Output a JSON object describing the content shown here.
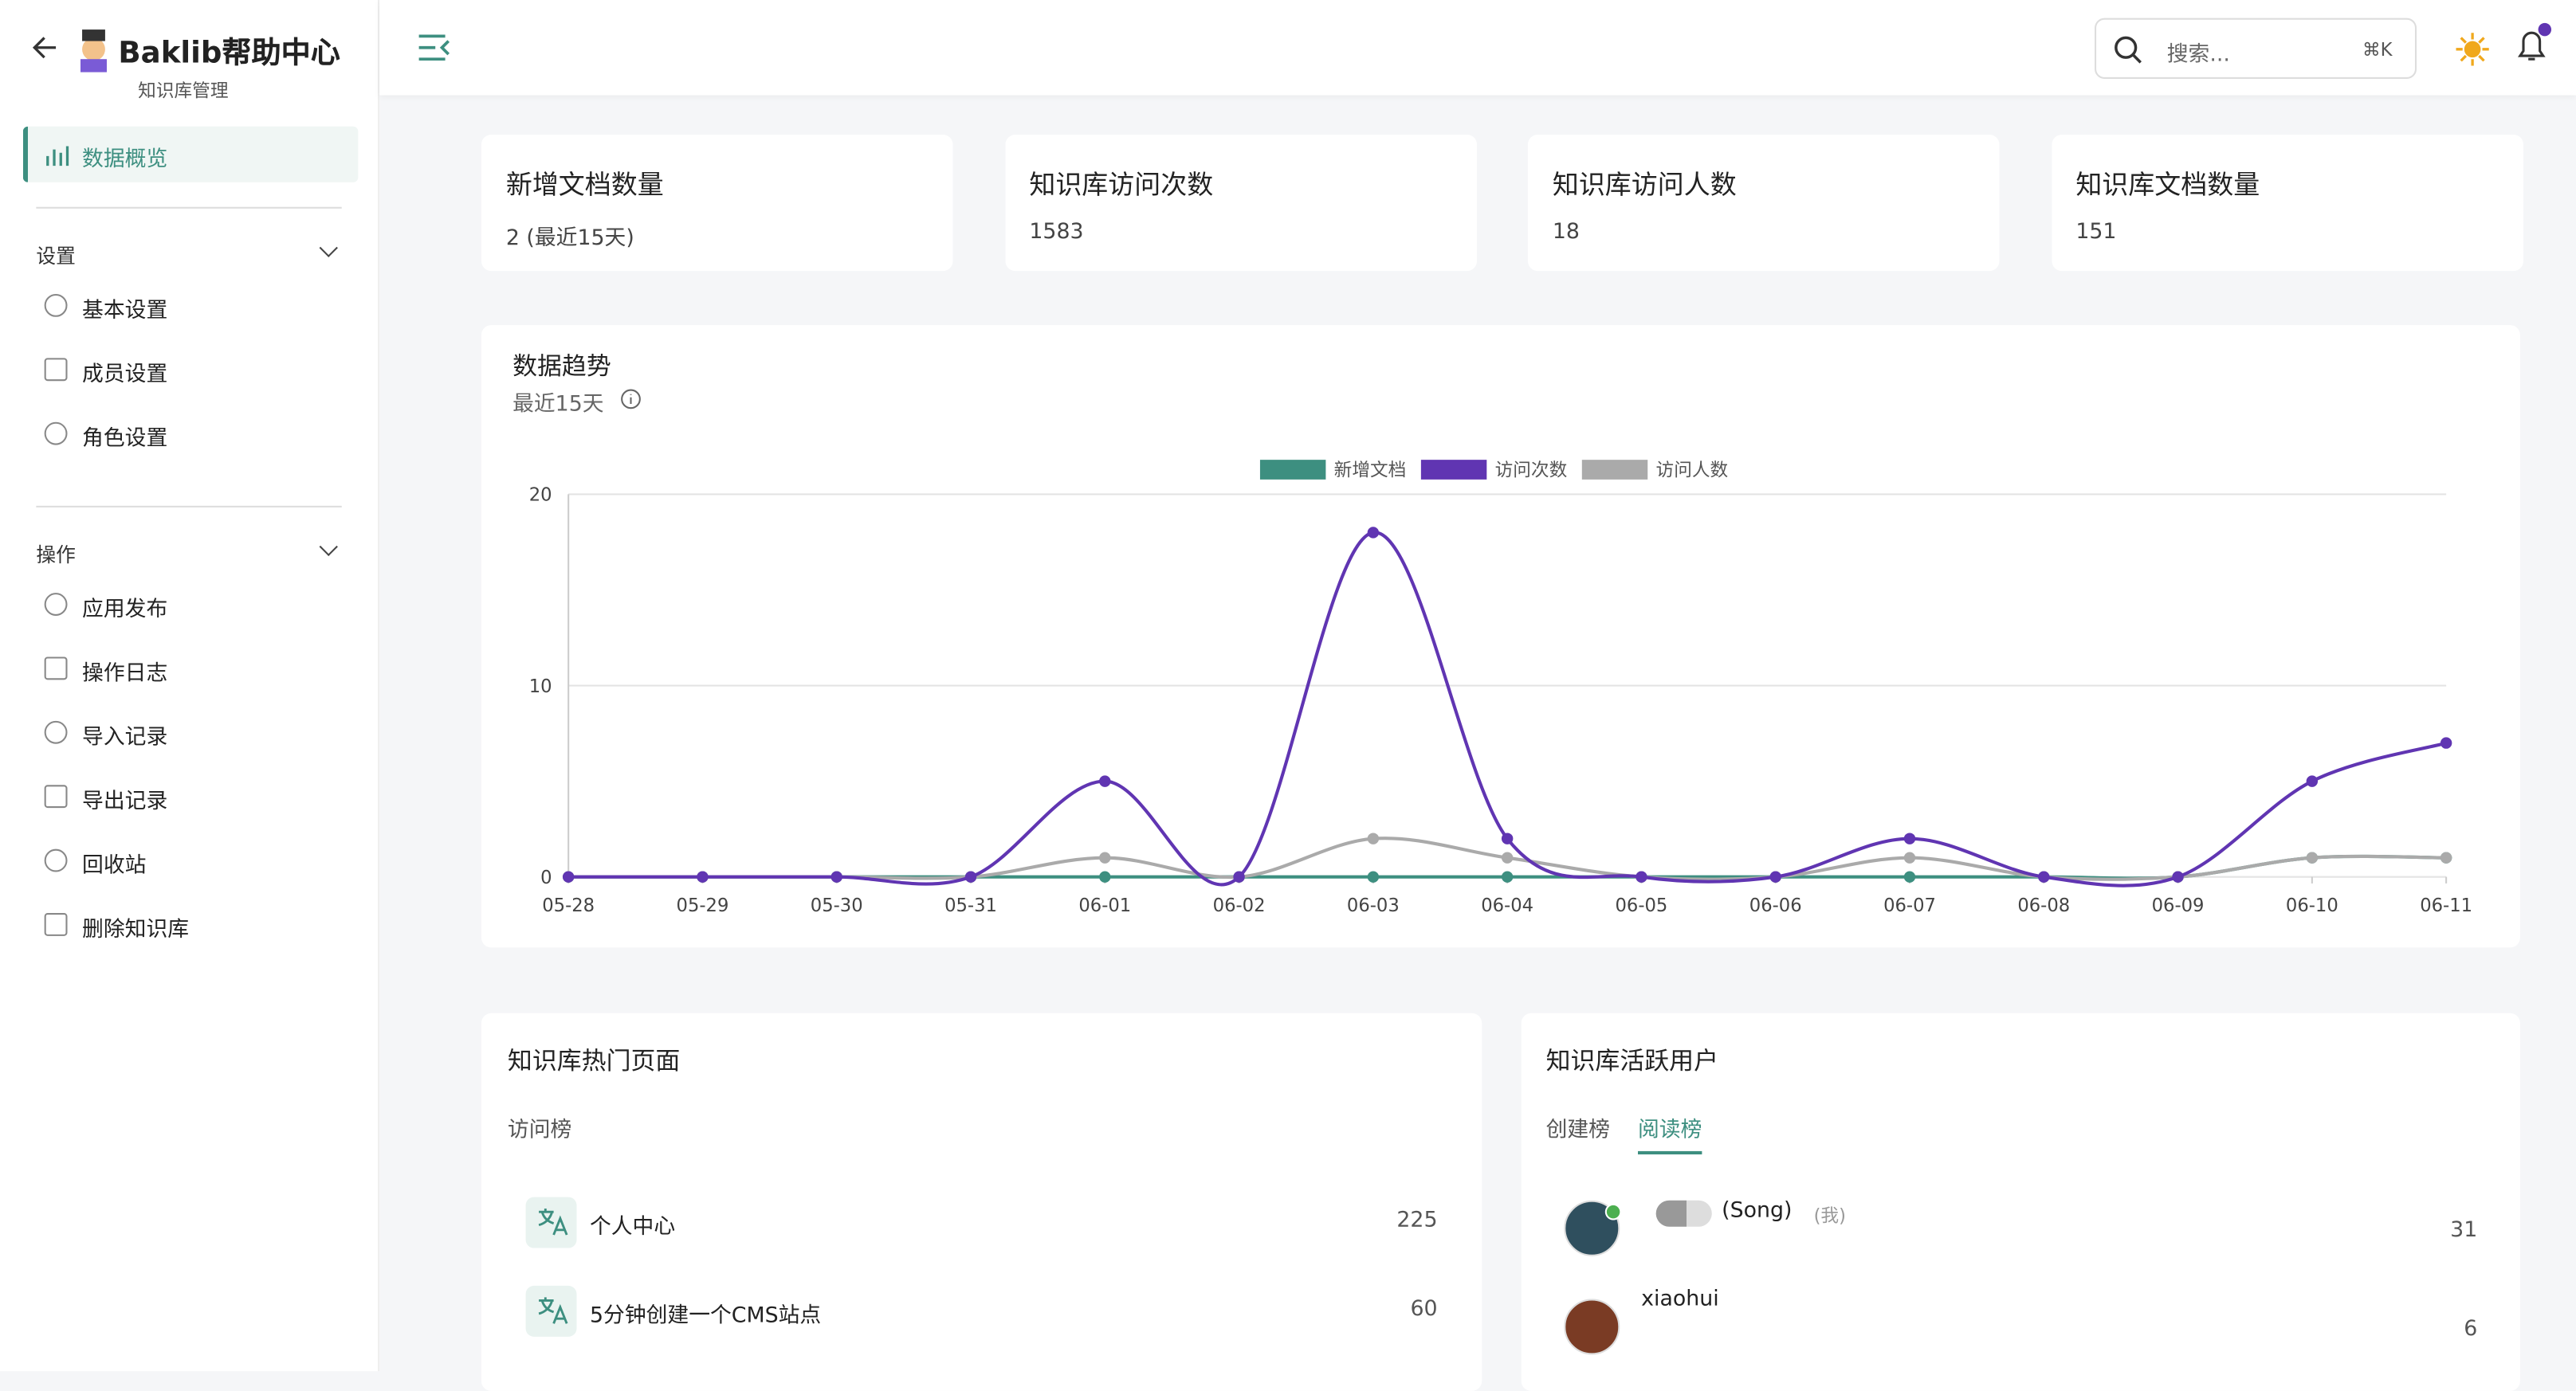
{
  "sidebar": {
    "title": "Baklib帮助中心",
    "subtitle": "知识库管理",
    "active": "数据概览",
    "sections": [
      {
        "heading": "设置",
        "items": [
          "基本设置",
          "成员设置",
          "角色设置"
        ]
      },
      {
        "heading": "操作",
        "items": [
          "应用发布",
          "操作日志",
          "导入记录",
          "导出记录",
          "回收站",
          "删除知识库"
        ]
      }
    ]
  },
  "topbar": {
    "search_placeholder": "搜索...",
    "shortcut": "⌘K"
  },
  "stats": [
    {
      "label": "新增文档数量",
      "value": "2 (最近15天)"
    },
    {
      "label": "知识库访问次数",
      "value": 1583
    },
    {
      "label": "知识库访问人数",
      "value": 18
    },
    {
      "label": "知识库文档数量",
      "value": 151
    }
  ],
  "chart_data": {
    "type": "line",
    "title": "数据趋势",
    "subtitle": "最近15天",
    "categories": [
      "05-28",
      "05-29",
      "05-30",
      "05-31",
      "06-01",
      "06-02",
      "06-03",
      "06-04",
      "06-05",
      "06-06",
      "06-07",
      "06-08",
      "06-09",
      "06-10",
      "06-11"
    ],
    "series": [
      {
        "name": "新增文档",
        "color": "#3d8f80",
        "values": [
          0,
          0,
          0,
          0,
          0,
          0,
          0,
          0,
          0,
          0,
          0,
          0,
          0,
          1,
          1
        ]
      },
      {
        "name": "访问次数",
        "color": "#6035b2",
        "values": [
          0,
          0,
          0,
          0,
          5,
          0,
          18,
          2,
          0,
          0,
          2,
          0,
          0,
          5,
          7
        ]
      },
      {
        "name": "访问人数",
        "color": "#aaaaaa",
        "values": [
          0,
          0,
          0,
          0,
          1,
          0,
          2,
          1,
          0,
          0,
          1,
          0,
          0,
          1,
          1
        ]
      }
    ],
    "ylim": [
      0,
      20
    ],
    "yticks": [
      0,
      10,
      20
    ],
    "grid": true,
    "legend": "top"
  },
  "hot_pages": {
    "title": "知识库热门页面",
    "tab": "访问榜",
    "items": [
      {
        "title": "个人中心",
        "count": 225
      },
      {
        "title": "5分钟创建一个CMS站点",
        "count": 60
      }
    ]
  },
  "active_users": {
    "title": "知识库活跃用户",
    "tabs": [
      "创建榜",
      "阅读榜"
    ],
    "users": [
      {
        "name": "(Song)",
        "tag": "(我)",
        "count": 31
      },
      {
        "name": "xiaohui",
        "count": 6
      }
    ]
  }
}
